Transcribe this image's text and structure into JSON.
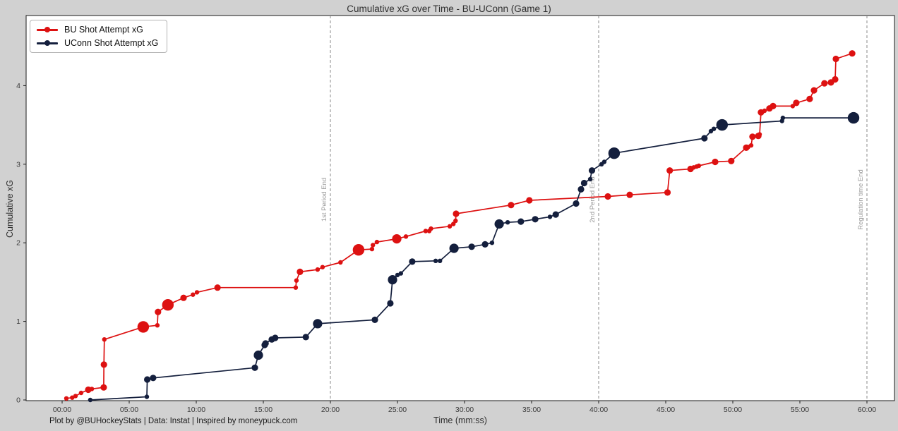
{
  "title": "Cumulative xG over Time - BU-UConn (Game 1)",
  "footer": "Plot by @BUHockeyStats | Data: Instat | Inspired by moneypuck.com",
  "colors": {
    "figure_bg": "#d1d1d1",
    "plot_bg": "#ffffff",
    "axis": "#1a1a1a",
    "tick_text": "#3a3a3a",
    "bu_red": "#dd1111",
    "uconn_navy": "#141f3d",
    "vline": "#8a8a8a",
    "vline_label": "#9a9a9a"
  },
  "chart_data": {
    "type": "line",
    "title": "Cumulative xG over Time - BU-UConn (Game 1)",
    "xlabel": "Time (mm:ss)",
    "ylabel": "Cumulative xG",
    "x_ticks": [
      "00:00",
      "05:00",
      "10:00",
      "15:00",
      "20:00",
      "25:00",
      "30:00",
      "35:00",
      "40:00",
      "45:00",
      "50:00",
      "55:00",
      "60:00"
    ],
    "y_ticks": [
      0,
      1,
      2,
      3,
      4
    ],
    "xlim_minutes": [
      -2.7,
      62.1
    ],
    "ylim": [
      -0.01,
      4.9
    ],
    "grid": false,
    "legend_position": "upper left",
    "vlines": [
      {
        "t": "20:00",
        "label": "1st Period End"
      },
      {
        "t": "40:00",
        "label": "2nd Period End"
      },
      {
        "t": "60:00",
        "label": "Regulation time End"
      }
    ],
    "series": [
      {
        "name": "BU Shot Attempt xG",
        "color": "#dd1111",
        "final_value": 4.41,
        "points": [
          [
            "00:19",
            0.02,
            "s"
          ],
          [
            "00:45",
            0.03,
            "s"
          ],
          [
            "01:00",
            0.05,
            "s"
          ],
          [
            "01:25",
            0.09,
            "s"
          ],
          [
            "01:57",
            0.13,
            "m"
          ],
          [
            "02:13",
            0.14,
            "s"
          ],
          [
            "03:06",
            0.16,
            "m"
          ],
          [
            "03:07",
            0.45,
            "m"
          ],
          [
            "03:09",
            0.77,
            "s"
          ],
          [
            "06:03",
            0.93,
            "xl"
          ],
          [
            "07:06",
            0.95,
            "s"
          ],
          [
            "07:09",
            1.12,
            "m"
          ],
          [
            "07:53",
            1.21,
            "xl"
          ],
          [
            "09:03",
            1.3,
            "m"
          ],
          [
            "09:45",
            1.34,
            "s"
          ],
          [
            "10:03",
            1.37,
            "s"
          ],
          [
            "11:35",
            1.43,
            "m"
          ],
          [
            "17:25",
            1.43,
            "s"
          ],
          [
            "17:28",
            1.52,
            "s"
          ],
          [
            "17:44",
            1.63,
            "m"
          ],
          [
            "19:03",
            1.66,
            "s"
          ],
          [
            "19:25",
            1.69,
            "s"
          ],
          [
            "20:45",
            1.75,
            "s"
          ],
          [
            "22:06",
            1.91,
            "xl"
          ],
          [
            "23:06",
            1.92,
            "s"
          ],
          [
            "23:10",
            1.97,
            "s"
          ],
          [
            "23:28",
            2.01,
            "s"
          ],
          [
            "24:57",
            2.05,
            "l"
          ],
          [
            "25:38",
            2.08,
            "s"
          ],
          [
            "27:06",
            2.15,
            "s"
          ],
          [
            "27:22",
            2.15,
            "s"
          ],
          [
            "27:30",
            2.18,
            "s"
          ],
          [
            "28:54",
            2.21,
            "s"
          ],
          [
            "29:10",
            2.24,
            "s"
          ],
          [
            "29:20",
            2.28,
            "s"
          ],
          [
            "29:22",
            2.37,
            "m"
          ],
          [
            "33:28",
            2.48,
            "m"
          ],
          [
            "34:50",
            2.54,
            "m"
          ],
          [
            "40:41",
            2.59,
            "m"
          ],
          [
            "42:19",
            2.61,
            "m"
          ],
          [
            "45:08",
            2.64,
            "m"
          ],
          [
            "45:18",
            2.92,
            "m"
          ],
          [
            "46:51",
            2.94,
            "m"
          ],
          [
            "47:05",
            2.96,
            "s"
          ],
          [
            "47:18",
            2.97,
            "s"
          ],
          [
            "47:28",
            2.98,
            "s"
          ],
          [
            "48:41",
            3.03,
            "m"
          ],
          [
            "49:53",
            3.04,
            "m"
          ],
          [
            "51:00",
            3.21,
            "m"
          ],
          [
            "51:09",
            3.22,
            "s"
          ],
          [
            "51:22",
            3.24,
            "s"
          ],
          [
            "51:28",
            3.35,
            "m"
          ],
          [
            "51:54",
            3.36,
            "m"
          ],
          [
            "52:00",
            3.38,
            "s"
          ],
          [
            "52:06",
            3.66,
            "m"
          ],
          [
            "52:22",
            3.68,
            "s"
          ],
          [
            "52:44",
            3.71,
            "m"
          ],
          [
            "53:00",
            3.74,
            "m"
          ],
          [
            "54:28",
            3.74,
            "s"
          ],
          [
            "54:44",
            3.78,
            "m"
          ],
          [
            "55:44",
            3.83,
            "m"
          ],
          [
            "56:03",
            3.94,
            "m"
          ],
          [
            "56:50",
            4.03,
            "m"
          ],
          [
            "57:19",
            4.04,
            "m"
          ],
          [
            "57:38",
            4.08,
            "m"
          ],
          [
            "57:41",
            4.34,
            "m"
          ],
          [
            "58:54",
            4.41,
            "m"
          ]
        ]
      },
      {
        "name": "UConn Shot Attempt xG",
        "color": "#141f3d",
        "final_value": 3.59,
        "points": [
          [
            "02:06",
            0.0,
            "s"
          ],
          [
            "06:19",
            0.04,
            "s"
          ],
          [
            "06:21",
            0.26,
            "m"
          ],
          [
            "06:47",
            0.28,
            "m"
          ],
          [
            "14:22",
            0.41,
            "m"
          ],
          [
            "14:38",
            0.57,
            "l"
          ],
          [
            "15:06",
            0.7,
            "m"
          ],
          [
            "15:10",
            0.72,
            "m"
          ],
          [
            "15:38",
            0.77,
            "m"
          ],
          [
            "15:53",
            0.79,
            "m"
          ],
          [
            "18:10",
            0.8,
            "m"
          ],
          [
            "19:03",
            0.97,
            "l"
          ],
          [
            "23:19",
            1.02,
            "m"
          ],
          [
            "24:28",
            1.23,
            "m"
          ],
          [
            "24:38",
            1.53,
            "l"
          ],
          [
            "25:00",
            1.59,
            "s"
          ],
          [
            "25:15",
            1.61,
            "s"
          ],
          [
            "26:06",
            1.76,
            "m"
          ],
          [
            "27:51",
            1.77,
            "s"
          ],
          [
            "28:10",
            1.77,
            "s"
          ],
          [
            "29:13",
            1.93,
            "l"
          ],
          [
            "30:32",
            1.95,
            "m"
          ],
          [
            "31:32",
            1.98,
            "m"
          ],
          [
            "32:03",
            2.0,
            "s"
          ],
          [
            "32:35",
            2.24,
            "l"
          ],
          [
            "33:13",
            2.26,
            "s"
          ],
          [
            "34:12",
            2.27,
            "m"
          ],
          [
            "35:16",
            2.3,
            "m"
          ],
          [
            "36:22",
            2.33,
            "s"
          ],
          [
            "36:48",
            2.36,
            "m"
          ],
          [
            "38:19",
            2.5,
            "m"
          ],
          [
            "38:41",
            2.68,
            "m"
          ],
          [
            "38:55",
            2.76,
            "m"
          ],
          [
            "39:22",
            2.81,
            "s"
          ],
          [
            "39:30",
            2.92,
            "m"
          ],
          [
            "40:13",
            3.0,
            "s"
          ],
          [
            "40:25",
            3.03,
            "s"
          ],
          [
            "41:09",
            3.14,
            "xl"
          ],
          [
            "47:53",
            3.33,
            "m"
          ],
          [
            "48:22",
            3.42,
            "s"
          ],
          [
            "48:35",
            3.45,
            "s"
          ],
          [
            "49:12",
            3.5,
            "xl"
          ],
          [
            "53:40",
            3.55,
            "s"
          ],
          [
            "53:44",
            3.59,
            "s"
          ],
          [
            "59:00",
            3.59,
            "xl"
          ]
        ]
      }
    ]
  }
}
